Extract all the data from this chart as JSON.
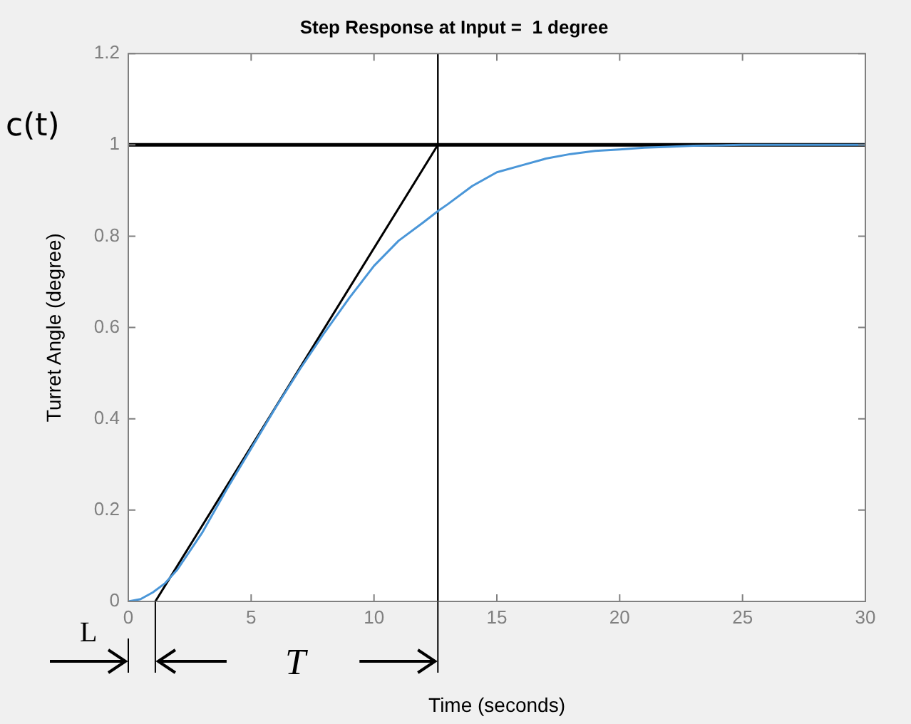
{
  "chart_data": {
    "type": "line",
    "title": "Step Response at Input =  1 degree",
    "xlabel": "Time (seconds)",
    "ylabel": "Turret Angle (degree)",
    "series": [
      {
        "color": "#4a96d8",
        "x": [
          0,
          0.5,
          1,
          1.5,
          2,
          3,
          4,
          5,
          6,
          7,
          8,
          9,
          10,
          11,
          12,
          12.6,
          13,
          14,
          15,
          16,
          17,
          18,
          19,
          20,
          21,
          22,
          23,
          24,
          25,
          27,
          30
        ],
        "values": [
          0,
          0.005,
          0.02,
          0.04,
          0.07,
          0.15,
          0.245,
          0.335,
          0.425,
          0.51,
          0.59,
          0.665,
          0.735,
          0.79,
          0.83,
          0.855,
          0.87,
          0.91,
          0.94,
          0.955,
          0.97,
          0.98,
          0.987,
          0.99,
          0.994,
          0.996,
          0.998,
          0.999,
          1,
          1,
          1
        ]
      },
      {
        "color": "#000000",
        "x": [
          1.1,
          12.6
        ],
        "values": [
          0,
          1
        ]
      }
    ],
    "ref_lines": [
      {
        "axis": "y",
        "value": 1,
        "color": "#000000"
      },
      {
        "axis": "x",
        "value": 12.6,
        "color": "#000000"
      }
    ],
    "xlim": [
      0,
      30
    ],
    "xticks": [
      0,
      5,
      10,
      15,
      20,
      25,
      30
    ],
    "ylim": [
      0,
      1.2
    ],
    "yticks": [
      0,
      0.2,
      0.4,
      0.6,
      0.8,
      1,
      1.2
    ],
    "grid": false,
    "legend": false,
    "marker": "none",
    "line_style": "solid",
    "annotations": [
      "c(t)",
      "L",
      "T"
    ]
  }
}
